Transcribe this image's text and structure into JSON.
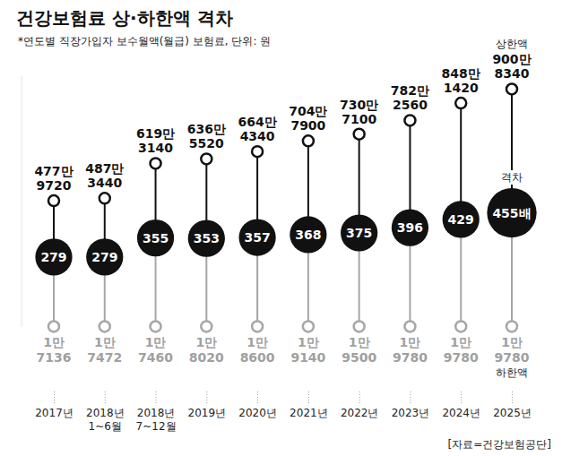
{
  "chart_data": {
    "type": "dot",
    "title": "건강보험료 상·하한액 격차",
    "subtitle": "*연도별 직장가입자 보수월액(월급) 보험료, 단위: 원",
    "source": "[자료=건강보험공단]",
    "categories": [
      "2017년",
      "2018년 1~6월",
      "2018년 7~12월",
      "2019년",
      "2020년",
      "2021년",
      "2022년",
      "2023년",
      "2024년",
      "2025년"
    ],
    "series": [
      {
        "name": "상한액",
        "color": "#111111",
        "values": [
          4779720,
          4873440,
          6193140,
          6365520,
          6644340,
          7047900,
          7307100,
          7822560,
          8481420,
          9008340
        ],
        "value_labels": [
          "477만 9720",
          "487만 3440",
          "619만 3140",
          "636만 5520",
          "664만 4340",
          "704만 7900",
          "730만 7100",
          "782만 2560",
          "848만 1420",
          "900만 8340"
        ]
      },
      {
        "name": "하한액",
        "color": "#a6a6a6",
        "values": [
          17136,
          17472,
          17460,
          18020,
          18600,
          19140,
          19500,
          19780,
          19780,
          19780
        ],
        "value_labels": [
          "1만 7136",
          "1만 7472",
          "1만 7460",
          "1만 8020",
          "1만 8600",
          "1만 9140",
          "1만 9500",
          "1만 9780",
          "1만 9780",
          "1만 9780"
        ]
      },
      {
        "name": "격차",
        "color": "#111111",
        "axis": "y2",
        "values": [
          279,
          279,
          355,
          353,
          357,
          368,
          375,
          396,
          429,
          455
        ],
        "value_labels": [
          "279",
          "279",
          "355",
          "353",
          "357",
          "368",
          "375",
          "396",
          "429",
          "455배"
        ]
      }
    ],
    "ylim": [
      0,
      9500000
    ],
    "y2lim": [
      0,
      1000
    ],
    "tick_labels": false,
    "data_labels": true,
    "grid": false
  }
}
